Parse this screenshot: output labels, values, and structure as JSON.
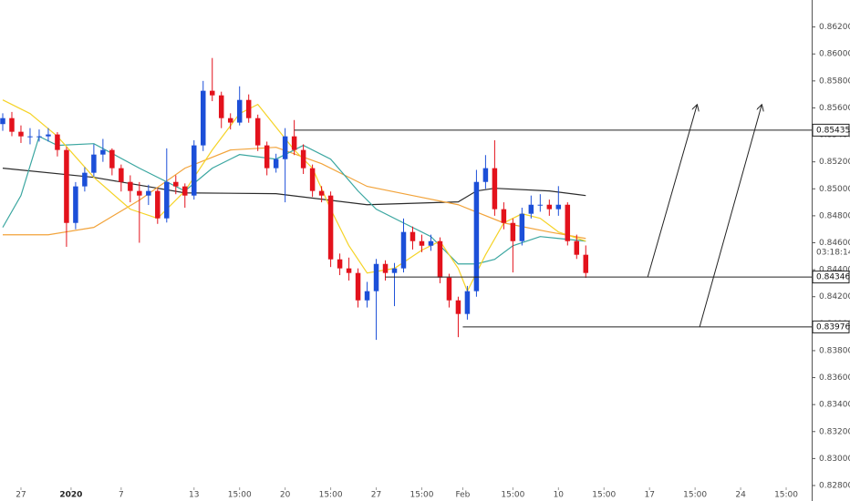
{
  "chart_data": {
    "type": "candlestick",
    "up_color": "#1c4fd8",
    "down_color": "#e3121c",
    "x": [
      0,
      1,
      2,
      3,
      4,
      5,
      6,
      7,
      8,
      9,
      10,
      11,
      12,
      13,
      14,
      15,
      16,
      17,
      18,
      19,
      20,
      21,
      22,
      23,
      24,
      25,
      26,
      27,
      28,
      29,
      30,
      31,
      32,
      33,
      34,
      35,
      36,
      37,
      38,
      39,
      40,
      41,
      42,
      43,
      44,
      45,
      46,
      47,
      48,
      49,
      50,
      51,
      52,
      53,
      54,
      55,
      56,
      57,
      58,
      59,
      60,
      61,
      62,
      63,
      64
    ],
    "open": [
      0.8548,
      0.85524,
      0.85423,
      0.85389,
      0.85389,
      0.85389,
      0.85403,
      0.85288,
      0.84747,
      0.85018,
      0.85119,
      0.85254,
      0.85288,
      0.85153,
      0.85051,
      0.84984,
      0.8495,
      0.84984,
      0.84781,
      0.85051,
      0.85018,
      0.8495,
      0.85322,
      0.85727,
      0.85693,
      0.85524,
      0.85491,
      0.85659,
      0.85524,
      0.85322,
      0.85153,
      0.8522,
      0.85389,
      0.85288,
      0.85153,
      0.84984,
      0.8495,
      0.84477,
      0.8441,
      0.84376,
      0.84173,
      0.84241,
      0.84443,
      0.84376,
      0.8441,
      0.8468,
      0.84612,
      0.84578,
      0.84612,
      0.84342,
      0.84173,
      0.84072,
      0.84241,
      0.85051,
      0.85153,
      0.84849,
      0.84747,
      0.84612,
      0.84815,
      0.84882,
      0.84882,
      0.84849,
      0.84882,
      0.84612,
      0.84511
    ],
    "high": [
      0.8556,
      0.8557,
      0.8547,
      0.8545,
      0.8544,
      0.8545,
      0.8542,
      0.8531,
      0.8505,
      0.8516,
      0.8533,
      0.8537,
      0.853,
      0.8518,
      0.851,
      0.8505,
      0.8503,
      0.85,
      0.853,
      0.851,
      0.8504,
      0.8536,
      0.858,
      0.8597,
      0.8572,
      0.8556,
      0.8576,
      0.857,
      0.8555,
      0.8535,
      0.8526,
      0.8545,
      0.8551,
      0.8533,
      0.8518,
      0.8502,
      0.8498,
      0.8452,
      0.8449,
      0.8441,
      0.8431,
      0.8448,
      0.8447,
      0.8445,
      0.8478,
      0.8472,
      0.8466,
      0.8466,
      0.8464,
      0.8437,
      0.842,
      0.8428,
      0.8514,
      0.8525,
      0.8536,
      0.849,
      0.8478,
      0.8486,
      0.8495,
      0.8496,
      0.8492,
      0.8502,
      0.849,
      0.8466,
      0.8458
    ],
    "low": [
      0.8543,
      0.8539,
      0.8534,
      0.8533,
      0.8535,
      0.8535,
      0.8524,
      0.8457,
      0.847,
      0.8498,
      0.8509,
      0.852,
      0.851,
      0.8498,
      0.849,
      0.846,
      0.8488,
      0.8474,
      0.8475,
      0.8496,
      0.8486,
      0.8492,
      0.8528,
      0.8565,
      0.8545,
      0.8544,
      0.8547,
      0.8549,
      0.8528,
      0.851,
      0.8512,
      0.849,
      0.8525,
      0.8511,
      0.8494,
      0.849,
      0.8442,
      0.8436,
      0.8432,
      0.8412,
      0.8412,
      0.8388,
      0.8432,
      0.8413,
      0.8438,
      0.8455,
      0.8453,
      0.8454,
      0.843,
      0.8412,
      0.839,
      0.8403,
      0.842,
      0.85,
      0.848,
      0.847,
      0.8438,
      0.8458,
      0.8478,
      0.8483,
      0.848,
      0.848,
      0.8458,
      0.8448,
      0.8434
    ],
    "close": [
      0.85524,
      0.85423,
      0.85389,
      0.85389,
      0.85389,
      0.85403,
      0.85288,
      0.84747,
      0.85018,
      0.85119,
      0.85254,
      0.85288,
      0.85153,
      0.85051,
      0.84984,
      0.8495,
      0.84984,
      0.84781,
      0.85051,
      0.85018,
      0.8495,
      0.85322,
      0.85727,
      0.85693,
      0.85524,
      0.85491,
      0.85659,
      0.85524,
      0.85322,
      0.85153,
      0.8522,
      0.85389,
      0.85288,
      0.85153,
      0.84984,
      0.8495,
      0.84477,
      0.8441,
      0.84376,
      0.84173,
      0.84241,
      0.84443,
      0.84376,
      0.8441,
      0.8468,
      0.84612,
      0.84578,
      0.84612,
      0.84342,
      0.84173,
      0.84072,
      0.84241,
      0.85051,
      0.85153,
      0.84849,
      0.84747,
      0.84612,
      0.84815,
      0.84882,
      0.84882,
      0.84849,
      0.84882,
      0.84612,
      0.84511,
      0.84376
    ],
    "overlays": [
      {
        "color": "#2b2b2b",
        "x": [
          0,
          10,
          20,
          30,
          40,
          50,
          52,
          54,
          60,
          64
        ],
        "values": [
          0.85153,
          0.85085,
          0.8497,
          0.84964,
          0.84882,
          0.84903,
          0.84984,
          0.85004,
          0.84984,
          0.8495
        ]
      },
      {
        "color": "#f2a33a",
        "x": [
          0,
          5,
          10,
          15,
          20,
          25,
          30,
          35,
          40,
          45,
          50,
          55,
          60,
          64
        ],
        "values": [
          0.84659,
          0.84659,
          0.84714,
          0.84916,
          0.85153,
          0.85288,
          0.85308,
          0.85186,
          0.85018,
          0.8495,
          0.84882,
          0.84747,
          0.8468,
          0.84632
        ]
      },
      {
        "color": "#3aa6a0",
        "x": [
          0,
          2,
          4,
          6,
          10,
          15,
          20,
          23,
          26,
          30,
          33,
          36,
          39,
          41,
          44,
          47,
          50,
          52,
          54,
          56,
          59,
          61,
          64
        ],
        "values": [
          0.84714,
          0.8495,
          0.85389,
          0.85322,
          0.85335,
          0.85153,
          0.84984,
          0.85153,
          0.85254,
          0.8522,
          0.85322,
          0.8522,
          0.84984,
          0.84849,
          0.84747,
          0.84646,
          0.84443,
          0.84443,
          0.84477,
          0.84578,
          0.84646,
          0.84632,
          0.84612
        ]
      },
      {
        "color": "#f5d327",
        "x": [
          0,
          3,
          6,
          10,
          14,
          17,
          20,
          23,
          26,
          28,
          30,
          32,
          34,
          36,
          38,
          40,
          43,
          46,
          48,
          50,
          51,
          53,
          55,
          57,
          59,
          61,
          64
        ],
        "values": [
          0.85659,
          0.85558,
          0.85389,
          0.85085,
          0.84849,
          0.84781,
          0.84984,
          0.85288,
          0.85558,
          0.85626,
          0.85457,
          0.85288,
          0.85153,
          0.84849,
          0.84578,
          0.84376,
          0.8441,
          0.84545,
          0.84612,
          0.8441,
          0.84241,
          0.84511,
          0.84747,
          0.84815,
          0.84781,
          0.8468,
          0.84612
        ]
      }
    ],
    "levels": [
      {
        "value": 0.85435,
        "start": 32
      },
      {
        "value": 0.84346,
        "start": 42
      },
      {
        "value": 0.83976,
        "start": 50.5
      }
    ],
    "arrows": [
      {
        "x0": 70.8,
        "y0": 0.84346,
        "x1": 76.2,
        "y1": 0.85619
      },
      {
        "x0": 76.5,
        "y0": 0.83976,
        "x1": 83.3,
        "y1": 0.85619
      }
    ],
    "countdown": "03:18:14",
    "countdown_price": 0.8453,
    "xlim": [
      -0.3,
      88.8
    ],
    "ylim": [
      0.828,
      0.864
    ],
    "xticks": [
      {
        "value": 2,
        "label": "27"
      },
      {
        "value": 7.5,
        "label": "2020"
      },
      {
        "value": 13,
        "label": "7"
      },
      {
        "value": 21,
        "label": "13"
      },
      {
        "value": 26,
        "label": "15:00"
      },
      {
        "value": 31,
        "label": "20"
      },
      {
        "value": 36,
        "label": "15:00"
      },
      {
        "value": 41,
        "label": "27"
      },
      {
        "value": 46,
        "label": "15:00"
      },
      {
        "value": 50.5,
        "label": "Feb"
      },
      {
        "value": 56,
        "label": "15:00"
      },
      {
        "value": 61,
        "label": "10"
      },
      {
        "value": 66,
        "label": "15:00"
      },
      {
        "value": 71,
        "label": "17"
      },
      {
        "value": 76,
        "label": "15:00"
      },
      {
        "value": 81,
        "label": "24"
      },
      {
        "value": 86,
        "label": "15:00"
      }
    ],
    "yticks": [
      {
        "value": 0.828,
        "label": "0.82800"
      },
      {
        "value": 0.83,
        "label": "0.83000"
      },
      {
        "value": 0.832,
        "label": "0.83200"
      },
      {
        "value": 0.834,
        "label": "0.83400"
      },
      {
        "value": 0.836,
        "label": "0.83600"
      },
      {
        "value": 0.838,
        "label": "0.83800"
      },
      {
        "value": 0.84,
        "label": "0.84000"
      },
      {
        "value": 0.842,
        "label": "0.84200"
      },
      {
        "value": 0.844,
        "label": "0.84400"
      },
      {
        "value": 0.846,
        "label": "0.84600"
      },
      {
        "value": 0.848,
        "label": "0.84800"
      },
      {
        "value": 0.85,
        "label": "0.85000"
      },
      {
        "value": 0.852,
        "label": "0.85200"
      },
      {
        "value": 0.854,
        "label": "0.85400"
      },
      {
        "value": 0.856,
        "label": "0.85600"
      },
      {
        "value": 0.858,
        "label": "0.85800"
      },
      {
        "value": 0.86,
        "label": "0.86000"
      },
      {
        "value": 0.862,
        "label": "0.86200"
      }
    ]
  }
}
